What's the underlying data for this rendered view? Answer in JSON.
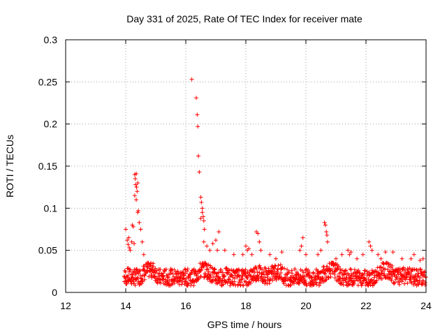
{
  "chart_data": {
    "type": "scatter",
    "title": "Day 331 of 2025, Rate Of TEC Index for receiver mate",
    "xlabel": "GPS time / hours",
    "ylabel": "ROTI / TECUs",
    "xlim": [
      12,
      24
    ],
    "ylim": [
      0,
      0.3
    ],
    "x_ticks": [
      12,
      14,
      16,
      18,
      20,
      22,
      24
    ],
    "x_tick_labels": [
      "12",
      "14",
      "16",
      "18",
      "20",
      "22",
      "24"
    ],
    "y_ticks": [
      0,
      0.05,
      0.1,
      0.15,
      0.2,
      0.25,
      0.3
    ],
    "y_tick_labels": [
      "0",
      "0.05",
      "0.1",
      "0.15",
      "0.2",
      "0.25",
      "0.3"
    ],
    "grid": true,
    "marker": "+",
    "series": [
      {
        "name": "ROTI",
        "color": "#ff0000",
        "note": "dense background band ~0.005-0.035 TECU/min from 14h to 24h, plus spikes",
        "background_band": {
          "x_start": 13.95,
          "x_end": 24.0,
          "y_min": 0.003,
          "y_max": 0.035
        },
        "points": [
          [
            14.0,
            0.075
          ],
          [
            14.05,
            0.062
          ],
          [
            14.08,
            0.057
          ],
          [
            14.1,
            0.065
          ],
          [
            14.12,
            0.053
          ],
          [
            14.15,
            0.05
          ],
          [
            14.2,
            0.06
          ],
          [
            14.22,
            0.08
          ],
          [
            14.25,
            0.078
          ],
          [
            14.28,
            0.058
          ],
          [
            14.3,
            0.14
          ],
          [
            14.32,
            0.135
          ],
          [
            14.33,
            0.128
          ],
          [
            14.35,
            0.141
          ],
          [
            14.36,
            0.125
          ],
          [
            14.38,
            0.12
          ],
          [
            14.4,
            0.13
          ],
          [
            14.42,
            0.097
          ],
          [
            14.45,
            0.083
          ],
          [
            14.5,
            0.075
          ],
          [
            14.55,
            0.06
          ],
          [
            14.6,
            0.045
          ],
          [
            14.35,
            0.11
          ],
          [
            14.3,
            0.115
          ],
          [
            14.4,
            0.095
          ],
          [
            16.2,
            0.253
          ],
          [
            16.35,
            0.231
          ],
          [
            16.38,
            0.211
          ],
          [
            16.4,
            0.197
          ],
          [
            16.42,
            0.162
          ],
          [
            16.45,
            0.143
          ],
          [
            16.5,
            0.113
          ],
          [
            16.52,
            0.107
          ],
          [
            16.55,
            0.1
          ],
          [
            16.58,
            0.09
          ],
          [
            16.6,
            0.085
          ],
          [
            16.62,
            0.075
          ],
          [
            16.55,
            0.095
          ],
          [
            16.5,
            0.088
          ],
          [
            16.6,
            0.06
          ],
          [
            16.7,
            0.055
          ],
          [
            16.8,
            0.05
          ],
          [
            16.9,
            0.058
          ],
          [
            17.0,
            0.062
          ],
          [
            17.1,
            0.072
          ],
          [
            17.05,
            0.05
          ],
          [
            17.3,
            0.05
          ],
          [
            17.6,
            0.045
          ],
          [
            17.9,
            0.045
          ],
          [
            18.0,
            0.055
          ],
          [
            18.05,
            0.05
          ],
          [
            18.1,
            0.052
          ],
          [
            18.2,
            0.045
          ],
          [
            18.35,
            0.072
          ],
          [
            18.4,
            0.07
          ],
          [
            18.45,
            0.06
          ],
          [
            18.5,
            0.05
          ],
          [
            18.8,
            0.045
          ],
          [
            19.0,
            0.04
          ],
          [
            19.2,
            0.048
          ],
          [
            19.8,
            0.05
          ],
          [
            19.85,
            0.055
          ],
          [
            19.9,
            0.065
          ],
          [
            20.0,
            0.045
          ],
          [
            20.4,
            0.045
          ],
          [
            20.5,
            0.05
          ],
          [
            20.62,
            0.083
          ],
          [
            20.65,
            0.08
          ],
          [
            20.68,
            0.072
          ],
          [
            20.7,
            0.068
          ],
          [
            20.72,
            0.06
          ],
          [
            21.0,
            0.04
          ],
          [
            21.2,
            0.045
          ],
          [
            21.4,
            0.05
          ],
          [
            21.45,
            0.045
          ],
          [
            21.5,
            0.048
          ],
          [
            21.7,
            0.04
          ],
          [
            21.9,
            0.045
          ],
          [
            22.1,
            0.06
          ],
          [
            22.15,
            0.055
          ],
          [
            22.2,
            0.05
          ],
          [
            22.4,
            0.045
          ],
          [
            22.5,
            0.04
          ],
          [
            22.65,
            0.048
          ],
          [
            22.9,
            0.048
          ],
          [
            23.2,
            0.04
          ],
          [
            23.5,
            0.04
          ],
          [
            23.6,
            0.045
          ],
          [
            23.8,
            0.038
          ],
          [
            23.9,
            0.04
          ]
        ]
      }
    ]
  }
}
